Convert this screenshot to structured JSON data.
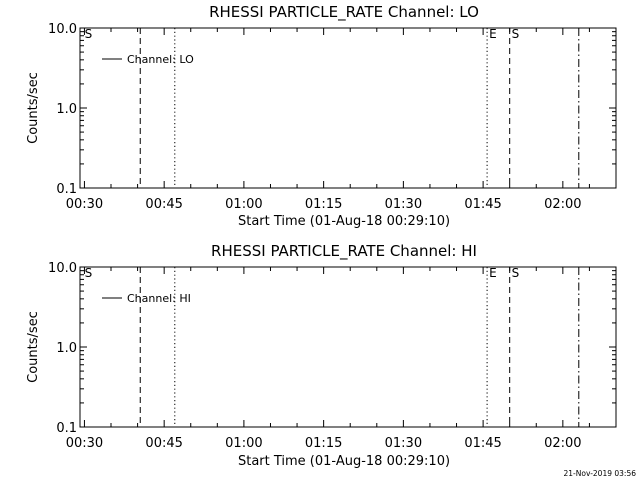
{
  "footer_timestamp": "21-Nov-2019 03:56",
  "chart_data": [
    {
      "type": "line",
      "title": "RHESSI PARTICLE_RATE Channel: LO",
      "xlabel": "Start Time (01-Aug-18 00:29:10)",
      "ylabel": "Counts/sec",
      "y_scale": "log",
      "ylim": [
        0.1,
        10.0
      ],
      "xlim": [
        "00:29:10",
        "02:10:00"
      ],
      "x_ticks": [
        "00:30",
        "00:45",
        "01:00",
        "01:15",
        "01:30",
        "01:45",
        "02:00"
      ],
      "y_ticks": [
        "10.0",
        "1.0",
        "0.1"
      ],
      "legend": {
        "placement": "top-left",
        "entries": [
          "Channel: LO"
        ]
      },
      "series": [
        {
          "name": "Channel: LO",
          "values": []
        }
      ],
      "markers": [
        {
          "time": "00:29:40",
          "style": "label",
          "label": "S"
        },
        {
          "time": "00:40:30",
          "style": "dashed",
          "label": ""
        },
        {
          "time": "00:47:00",
          "style": "dotted",
          "label": ""
        },
        {
          "time": "01:45:45",
          "style": "dotted",
          "label": "E"
        },
        {
          "time": "01:50:00",
          "style": "dashed",
          "label": "S"
        },
        {
          "time": "02:03:00",
          "style": "dashdot",
          "label": ""
        }
      ]
    },
    {
      "type": "line",
      "title": "RHESSI PARTICLE_RATE Channel: HI",
      "xlabel": "Start Time (01-Aug-18 00:29:10)",
      "ylabel": "Counts/sec",
      "y_scale": "log",
      "ylim": [
        0.1,
        10.0
      ],
      "xlim": [
        "00:29:10",
        "02:10:00"
      ],
      "x_ticks": [
        "00:30",
        "00:45",
        "01:00",
        "01:15",
        "01:30",
        "01:45",
        "02:00"
      ],
      "y_ticks": [
        "10.0",
        "1.0",
        "0.1"
      ],
      "legend": {
        "placement": "top-left",
        "entries": [
          "Channel: HI"
        ]
      },
      "series": [
        {
          "name": "Channel: HI",
          "values": []
        }
      ],
      "markers": [
        {
          "time": "00:29:40",
          "style": "label",
          "label": "S"
        },
        {
          "time": "00:40:30",
          "style": "dashed",
          "label": ""
        },
        {
          "time": "00:47:00",
          "style": "dotted",
          "label": ""
        },
        {
          "time": "01:45:45",
          "style": "dotted",
          "label": "E"
        },
        {
          "time": "01:50:00",
          "style": "dashed",
          "label": "S"
        },
        {
          "time": "02:03:00",
          "style": "dashdot",
          "label": ""
        }
      ]
    }
  ]
}
